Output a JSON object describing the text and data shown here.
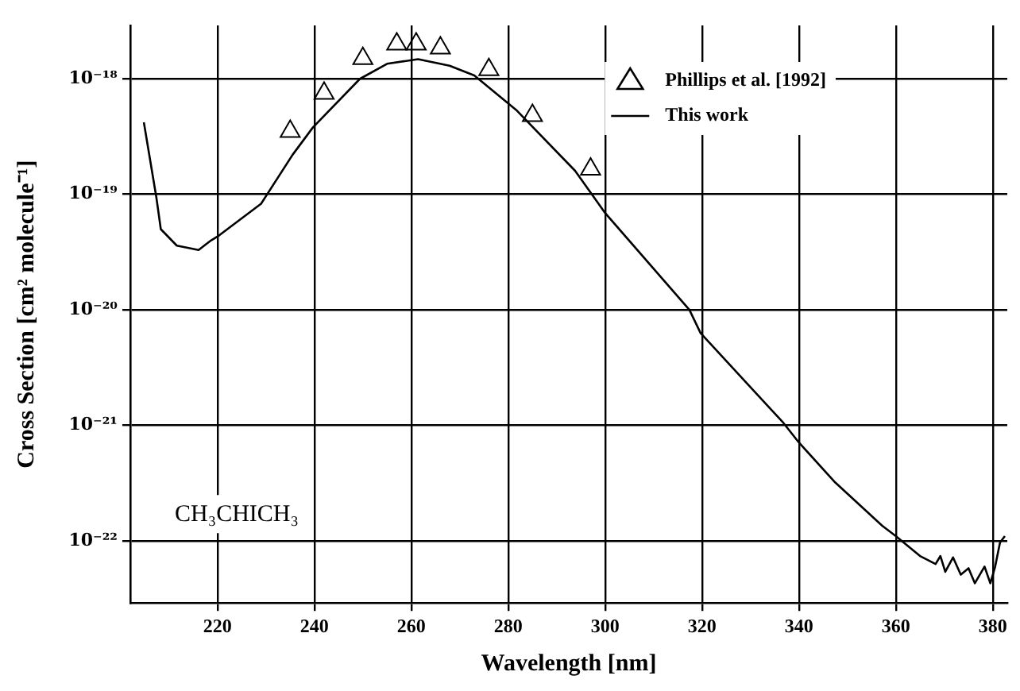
{
  "chart_data": {
    "type": "line",
    "xlabel": "Wavelength [nm]",
    "ylabel": "Cross Section [cm² molecule⁻¹]",
    "annotations": [
      "CH₃CHICH₃"
    ],
    "xlim": [
      202,
      383
    ],
    "xticks": [
      220,
      240,
      260,
      280,
      300,
      320,
      340,
      360,
      380
    ],
    "ylim": [
      2.9e-23,
      2.9e-18
    ],
    "yticks": [
      {
        "value": 1e-22,
        "label": "10⁻²²"
      },
      {
        "value": 1e-21,
        "label": "10⁻²¹"
      },
      {
        "value": 1e-20,
        "label": "10⁻²⁰"
      },
      {
        "value": 1e-19,
        "label": "10⁻¹⁹"
      },
      {
        "value": 1e-18,
        "label": "10⁻¹⁸"
      }
    ],
    "log": "y",
    "grid": true,
    "legend": "top right",
    "series": [
      {
        "name": "Phillips et al. [1992]",
        "type": "scatter",
        "marker": "triangle",
        "color": "#000000",
        "x": [
          235,
          242,
          250,
          257,
          261,
          266,
          276,
          285,
          297
        ],
        "values": [
          3.5e-19,
          7.5e-19,
          1.5e-18,
          2e-18,
          2e-18,
          1.85e-18,
          1.2e-18,
          4.8e-19,
          1.65e-19
        ]
      },
      {
        "name": "This work",
        "type": "line",
        "marker": "none",
        "line_style": "solid",
        "color": "#000000",
        "x": [
          204.8,
          207.4,
          208.3,
          211.6,
          216.1,
          218.7,
          220.3,
          229,
          235.5,
          239.7,
          249.4,
          255,
          261.4,
          267.9,
          273,
          281.8,
          293.8,
          300,
          317.4,
          319.7,
          336.8,
          340,
          347.5,
          357.2,
          360,
          365,
          368.2,
          369.2,
          370.2,
          371.8,
          373.4,
          375,
          376.3,
          378.3,
          379.5,
          380.5,
          381.5,
          382.5
        ],
        "values": [
          4.2e-19,
          9.3e-20,
          5e-20,
          3.6e-20,
          3.3e-20,
          4e-20,
          4.4e-20,
          8.3e-20,
          2.2e-19,
          3.8e-19,
          1e-18,
          1.35e-18,
          1.48e-18,
          1.3e-18,
          1.07e-18,
          5.3e-19,
          1.6e-19,
          6.9e-20,
          1e-20,
          6.3e-21,
          1.05e-21,
          7.1e-22,
          3.2e-22,
          1.35e-22,
          1.1e-22,
          7.4e-23,
          6.3e-23,
          7.4e-23,
          5.4e-23,
          7.2e-23,
          5.1e-23,
          5.8e-23,
          4.3e-23,
          6e-23,
          4.3e-23,
          6e-23,
          9.7e-23,
          1.1e-22
        ]
      }
    ]
  }
}
